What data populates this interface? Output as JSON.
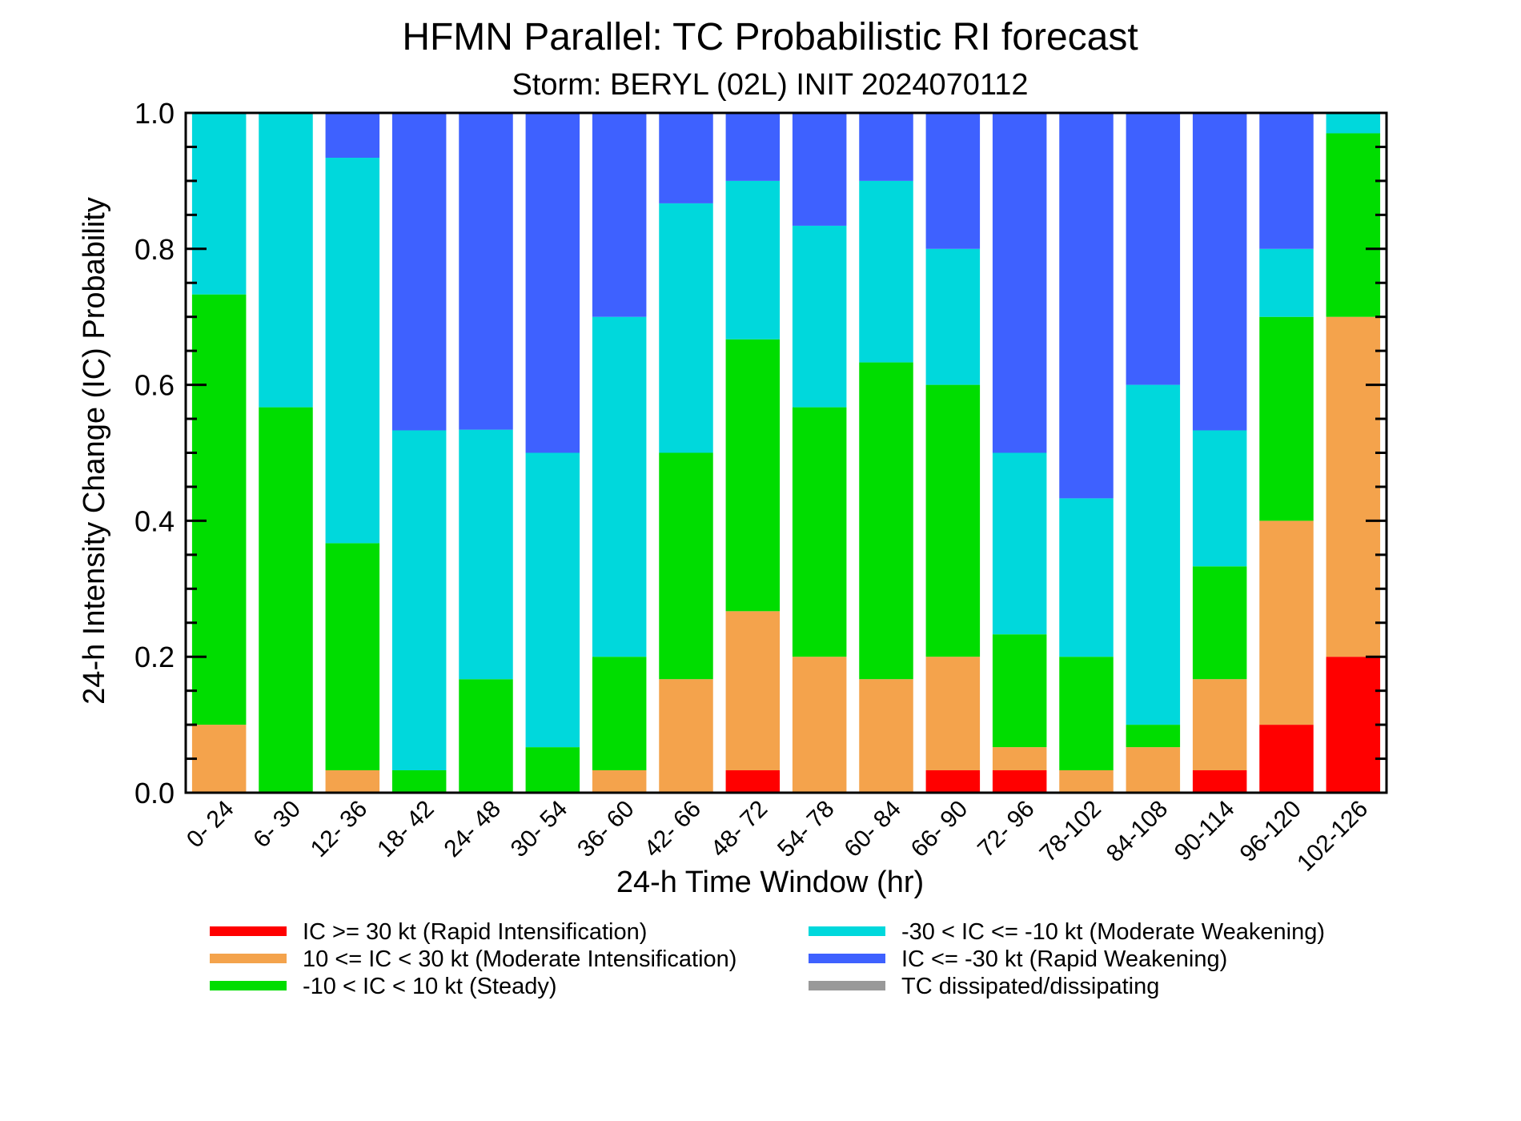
{
  "chart_data": {
    "type": "bar",
    "stacked": true,
    "title": "HFMN Parallel: TC Probabilistic RI forecast",
    "subtitle": "Storm: BERYL (02L) INIT 2024070112",
    "xlabel": "24-h Time Window (hr)",
    "ylabel": "24-h Intensity Change (IC) Probability",
    "ylim": [
      0,
      1
    ],
    "yticks": [
      "0.0",
      "0.2",
      "0.4",
      "0.6",
      "0.8",
      "1.0"
    ],
    "grid": false,
    "categories": [
      "0- 24",
      "6- 30",
      "12- 36",
      "18- 42",
      "24- 48",
      "30- 54",
      "36- 60",
      "42- 66",
      "48- 72",
      "54- 78",
      "60- 84",
      "66- 90",
      "72- 96",
      "78-102",
      "84-108",
      "90-114",
      "96-120",
      "102-126"
    ],
    "series": [
      {
        "name": "IC >= 30 kt (Rapid Intensification)",
        "color": "#ff0000",
        "values": [
          0,
          0,
          0,
          0,
          0,
          0,
          0,
          0,
          0.033,
          0,
          0,
          0.033,
          0.033,
          0,
          0,
          0.033,
          0.1,
          0.2
        ]
      },
      {
        "name": "10 <= IC < 30 kt (Moderate Intensification)",
        "color": "#f4a34c",
        "values": [
          0.1,
          0,
          0.033,
          0,
          0,
          0,
          0.033,
          0.167,
          0.234,
          0.2,
          0.167,
          0.167,
          0.034,
          0.033,
          0.067,
          0.134,
          0.3,
          0.5
        ]
      },
      {
        "name": "-10 < IC < 10 kt (Steady)",
        "color": "#00dd00",
        "values": [
          0.633,
          0.567,
          0.334,
          0.033,
          0.167,
          0.067,
          0.167,
          0.333,
          0.4,
          0.367,
          0.466,
          0.4,
          0.166,
          0.167,
          0.033,
          0.166,
          0.3,
          0.27
        ]
      },
      {
        "name": "-30 < IC <= -10 kt (Moderate Weakening)",
        "color": "#00d8dc",
        "values": [
          0.267,
          0.433,
          0.567,
          0.5,
          0.367,
          0.433,
          0.5,
          0.367,
          0.233,
          0.267,
          0.267,
          0.2,
          0.267,
          0.233,
          0.5,
          0.2,
          0.1,
          0.03
        ]
      },
      {
        "name": "IC <= -30 kt (Rapid Weakening)",
        "color": "#3e61ff",
        "values": [
          0,
          0,
          0.066,
          0.467,
          0.466,
          0.5,
          0.3,
          0.133,
          0.1,
          0.166,
          0.1,
          0.2,
          0.5,
          0.567,
          0.4,
          0.467,
          0.2,
          0
        ]
      },
      {
        "name": "TC dissipated/dissipating",
        "color": "#999999",
        "values": [
          0,
          0,
          0,
          0,
          0,
          0,
          0,
          0,
          0,
          0,
          0,
          0,
          0,
          0,
          0,
          0,
          0,
          0
        ]
      }
    ],
    "legend_placement": "bottom"
  }
}
